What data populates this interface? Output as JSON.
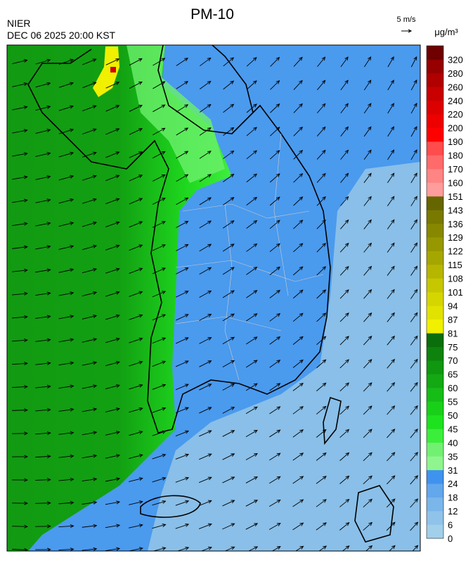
{
  "header": {
    "title": "PM-10",
    "source": "NIER",
    "timestamp": "DEC 06 2025 20:00 KST"
  },
  "wind_scale": {
    "label": "5 m/s"
  },
  "colorbar": {
    "unit": "μg/m³",
    "ticks": [
      0,
      6,
      12,
      18,
      24,
      31,
      35,
      40,
      45,
      50,
      55,
      60,
      65,
      70,
      75,
      81,
      87,
      94,
      101,
      108,
      115,
      122,
      129,
      136,
      143,
      151,
      160,
      170,
      180,
      190,
      200,
      220,
      240,
      260,
      280,
      320
    ],
    "colors": [
      "#a2cfe9",
      "#8fc3e9",
      "#7ab6ea",
      "#63a7ec",
      "#3f93ef",
      "#8ff58f",
      "#72f072",
      "#3cee3c",
      "#1ee21e",
      "#19d019",
      "#16bd16",
      "#13a913",
      "#109710",
      "#0d830d",
      "#0a6e0a",
      "#f0f000",
      "#e2e200",
      "#d5d500",
      "#c7c700",
      "#b6b600",
      "#a6a600",
      "#979700",
      "#888800",
      "#797900",
      "#666600",
      "#ff9c9c",
      "#ff8484",
      "#ff6a6a",
      "#ff4c4c",
      "#ff0000",
      "#ee0000",
      "#dc0000",
      "#c80000",
      "#b00000",
      "#960000",
      "#6e0000"
    ]
  }
}
